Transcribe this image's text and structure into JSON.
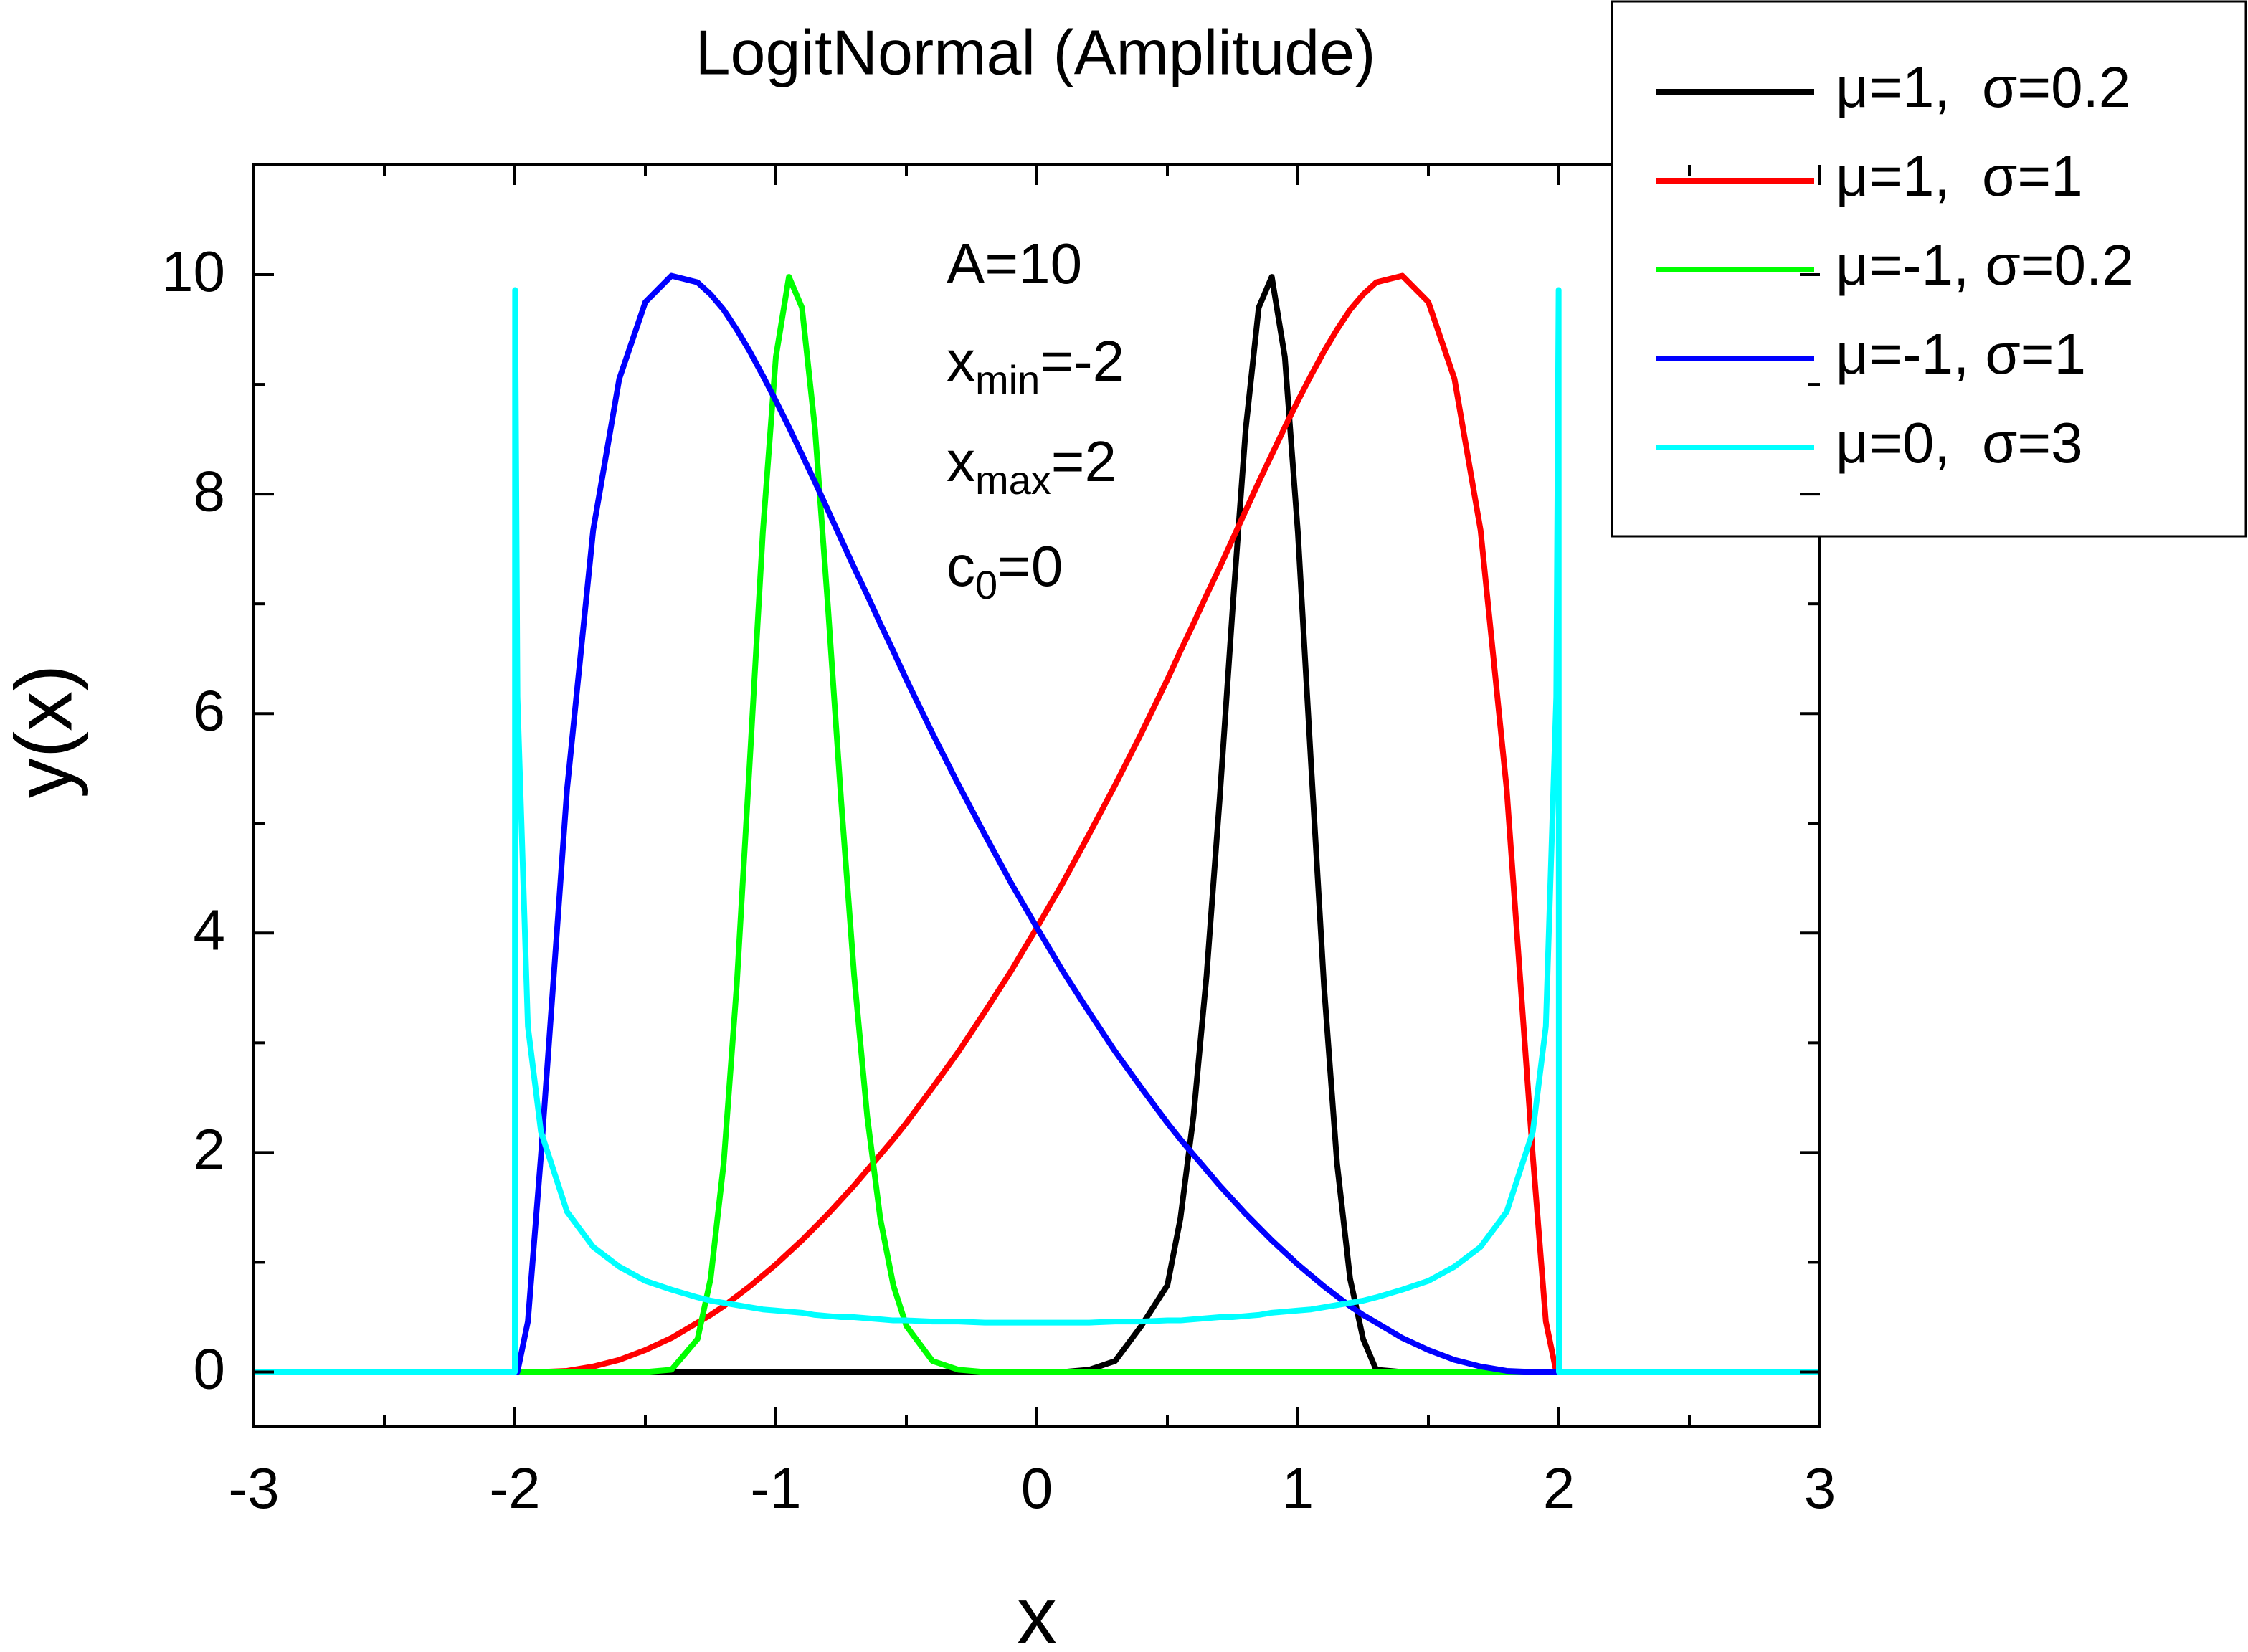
{
  "chart_data": {
    "type": "line",
    "title": "LogitNormal (Amplitude)",
    "xlabel": "x",
    "ylabel": "y(x)",
    "annotations": [
      {
        "text": "A=10"
      },
      {
        "text": "x",
        "sub": "min",
        "after": "=-2"
      },
      {
        "text": "x",
        "sub": "max",
        "after": "=2"
      },
      {
        "text": "c",
        "sub": "0",
        "after": "=0"
      }
    ],
    "xlim": [
      -3,
      3
    ],
    "xticks": [
      -3,
      -2,
      -1,
      0,
      1,
      2,
      3
    ],
    "xminor": [
      -2.5,
      -1.5,
      -0.5,
      0.5,
      1.5,
      2.5
    ],
    "ylim": [
      -0.5,
      11
    ],
    "yticks": [
      0,
      2,
      4,
      6,
      8,
      10
    ],
    "yminor": [
      1,
      3,
      5,
      7,
      9
    ],
    "legend": "top-right",
    "x": [
      -3,
      -2,
      -1.999,
      -1.99,
      -1.95,
      -1.9,
      -1.8,
      -1.7,
      -1.6,
      -1.5,
      -1.4,
      -1.3,
      -1.25,
      -1.2,
      -1.15,
      -1.1,
      -1.05,
      -1,
      -0.95,
      -0.9,
      -0.85,
      -0.8,
      -0.75,
      -0.7,
      -0.65,
      -0.6,
      -0.55,
      -0.5,
      -0.4,
      -0.3,
      -0.2,
      -0.1,
      0,
      0.1,
      0.2,
      0.3,
      0.4,
      0.5,
      0.55,
      0.6,
      0.65,
      0.7,
      0.75,
      0.8,
      0.85,
      0.9,
      0.95,
      1,
      1.05,
      1.1,
      1.15,
      1.2,
      1.25,
      1.3,
      1.4,
      1.5,
      1.6,
      1.7,
      1.8,
      1.9,
      1.95,
      1.99,
      1.999,
      2,
      3
    ],
    "series": [
      {
        "name": "μ=1,  σ=0.2",
        "color": "#000000",
        "values": [
          0,
          0,
          0,
          0,
          0,
          0,
          0,
          0,
          0,
          0,
          0,
          0,
          0,
          0,
          0,
          0,
          0,
          0,
          0,
          0,
          0,
          0,
          0,
          0,
          0,
          0,
          0,
          0,
          0,
          0,
          0,
          0,
          0,
          0,
          0.02,
          0.1,
          0.42,
          0.79,
          1.4,
          2.33,
          3.61,
          5.21,
          6.96,
          8.59,
          9.7,
          9.98,
          9.25,
          7.65,
          5.56,
          3.52,
          1.9,
          0.85,
          0.3,
          0.02,
          0,
          0,
          0,
          0,
          0,
          0,
          0,
          0,
          0,
          0,
          0
        ]
      },
      {
        "name": "μ=1,  σ=1",
        "color": "#ff0000",
        "values": [
          0,
          0,
          0,
          0,
          0,
          0,
          0.01,
          0.05,
          0.11,
          0.2,
          0.31,
          0.45,
          0.52,
          0.6,
          0.69,
          0.78,
          0.88,
          0.98,
          1.09,
          1.2,
          1.32,
          1.44,
          1.57,
          1.7,
          1.84,
          1.98,
          2.12,
          2.27,
          2.59,
          2.92,
          3.28,
          3.65,
          4.05,
          4.46,
          4.9,
          5.35,
          5.82,
          6.31,
          6.57,
          6.82,
          7.08,
          7.33,
          7.59,
          7.85,
          8.11,
          8.36,
          8.61,
          8.85,
          9.08,
          9.3,
          9.5,
          9.68,
          9.82,
          9.93,
          9.99,
          9.75,
          9.05,
          7.67,
          5.31,
          1.97,
          0.46,
          0,
          0,
          0,
          0
        ]
      },
      {
        "name": "μ=-1, σ=0.2",
        "color": "#00ff00",
        "values": [
          0,
          0,
          0,
          0,
          0,
          0,
          0,
          0,
          0,
          0,
          0.02,
          0.3,
          0.85,
          1.9,
          3.52,
          5.56,
          7.65,
          9.25,
          9.98,
          9.7,
          8.59,
          6.96,
          5.21,
          3.61,
          2.33,
          1.4,
          0.79,
          0.42,
          0.1,
          0.02,
          0,
          0,
          0,
          0,
          0,
          0,
          0,
          0,
          0,
          0,
          0,
          0,
          0,
          0,
          0,
          0,
          0,
          0,
          0,
          0,
          0,
          0,
          0,
          0,
          0,
          0,
          0,
          0,
          0,
          0,
          0,
          0,
          0,
          0,
          0
        ]
      },
      {
        "name": "μ=-1, σ=1",
        "color": "#0000ff",
        "values": [
          0,
          0,
          0,
          0,
          0.46,
          1.97,
          5.31,
          7.67,
          9.05,
          9.75,
          9.99,
          9.93,
          9.82,
          9.68,
          9.5,
          9.3,
          9.08,
          8.85,
          8.61,
          8.36,
          8.11,
          7.85,
          7.59,
          7.33,
          7.08,
          6.82,
          6.57,
          6.31,
          5.82,
          5.35,
          4.9,
          4.46,
          4.05,
          3.65,
          3.28,
          2.92,
          2.59,
          2.27,
          2.12,
          1.98,
          1.84,
          1.7,
          1.57,
          1.44,
          1.32,
          1.2,
          1.09,
          0.98,
          0.88,
          0.78,
          0.69,
          0.6,
          0.52,
          0.45,
          0.31,
          0.2,
          0.11,
          0.05,
          0.01,
          0,
          0,
          0,
          0,
          0,
          0
        ]
      },
      {
        "name": "μ=0,  σ=3",
        "color": "#00ffff",
        "values": [
          0,
          0,
          9.86,
          6.15,
          3.15,
          2.19,
          1.46,
          1.14,
          0.96,
          0.83,
          0.75,
          0.68,
          0.65,
          0.63,
          0.61,
          0.59,
          0.57,
          0.56,
          0.55,
          0.54,
          0.52,
          0.51,
          0.5,
          0.5,
          0.49,
          0.48,
          0.47,
          0.47,
          0.46,
          0.46,
          0.45,
          0.45,
          0.45,
          0.45,
          0.45,
          0.46,
          0.46,
          0.47,
          0.47,
          0.48,
          0.49,
          0.5,
          0.5,
          0.51,
          0.52,
          0.54,
          0.55,
          0.56,
          0.57,
          0.59,
          0.61,
          0.63,
          0.65,
          0.68,
          0.75,
          0.83,
          0.96,
          1.14,
          1.46,
          2.19,
          3.15,
          6.15,
          9.86,
          0,
          0
        ]
      }
    ]
  }
}
